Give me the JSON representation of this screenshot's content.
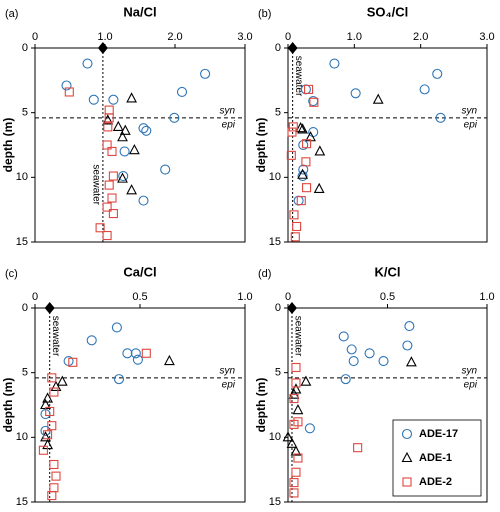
{
  "chart_data": [
    {
      "type": "scatter",
      "panel_label": "(a)",
      "title": "Na/Cl",
      "ylabel": "depth (m)",
      "xlim": [
        0,
        3
      ],
      "xticks": [
        0,
        {
          "value": 1,
          "label": "1.0"
        },
        {
          "value": 2,
          "label": "2.0"
        },
        {
          "value": 3,
          "label": "3.0"
        }
      ],
      "ylim": [
        0,
        15
      ],
      "yticks": [
        0,
        5,
        10,
        15
      ],
      "y_inverted": true,
      "seawater": {
        "label": "seawater",
        "value": 0.97
      },
      "boundary": {
        "value": 5.4,
        "labels": [
          "syn",
          "epi"
        ]
      },
      "series": [
        {
          "marker": "circle",
          "color": "#2e75b6",
          "x": [
            0.75,
            2.43,
            2.1,
            0.45,
            0.84,
            1.12,
            1.99,
            1.55,
            1.59,
            1.28,
            1.26,
            1.86,
            1.55
          ],
          "values": [
            1.2,
            2.0,
            3.4,
            2.9,
            4.0,
            4.0,
            5.4,
            6.2,
            6.4,
            8.0,
            9.9,
            9.4,
            11.8
          ]
        },
        {
          "marker": "triangle",
          "color": "#000000",
          "x": [
            1.38,
            1.04,
            1.19,
            1.29,
            1.25,
            1.42,
            1.25,
            1.38
          ],
          "values": [
            3.9,
            5.6,
            6.1,
            6.4,
            6.9,
            7.9,
            10.1,
            11.0
          ]
        },
        {
          "marker": "square",
          "color": "#e0463f",
          "x": [
            0.49,
            1.06,
            1.06,
            1.04,
            1.03,
            1.1,
            1.12,
            1.06,
            1.1,
            1.03,
            1.12,
            0.93,
            1.03
          ],
          "values": [
            3.4,
            4.8,
            5.4,
            6.1,
            7.5,
            8.0,
            9.9,
            10.6,
            11.6,
            12.3,
            12.8,
            13.9,
            14.5
          ]
        }
      ]
    },
    {
      "type": "scatter",
      "panel_label": "(b)",
      "title": "SO₄/Cl",
      "ylabel": "depth (m)",
      "xlim": [
        0,
        3
      ],
      "xticks": [
        0,
        {
          "value": 1,
          "label": "1.0"
        },
        {
          "value": 2,
          "label": "2.0"
        },
        {
          "value": 3,
          "label": "3.0"
        }
      ],
      "ylim": [
        0,
        15
      ],
      "yticks": [
        0,
        5,
        10,
        15
      ],
      "y_inverted": true,
      "seawater": {
        "label": "seawater",
        "value": 0.07
      },
      "boundary": {
        "value": 5.4,
        "labels": [
          "syn",
          "epi"
        ]
      },
      "series": [
        {
          "marker": "circle",
          "color": "#2e75b6",
          "x": [
            0.7,
            2.25,
            1.02,
            0.27,
            2.06,
            0.38,
            2.3,
            0.38,
            0.23,
            0.23,
            0.22,
            0.16
          ],
          "values": [
            1.2,
            2.0,
            3.5,
            3.2,
            3.2,
            4.1,
            5.4,
            6.5,
            7.5,
            9.4,
            9.9,
            11.8
          ]
        },
        {
          "marker": "triangle",
          "color": "#000000",
          "x": [
            1.36,
            0.19,
            0.22,
            0.34,
            0.48,
            0.22,
            0.47
          ],
          "values": [
            4.0,
            6.2,
            6.3,
            6.9,
            8.0,
            9.8,
            10.9
          ]
        },
        {
          "marker": "square",
          "color": "#e0463f",
          "x": [
            0.31,
            0.39,
            0.08,
            0.06,
            0.28,
            0.05,
            0.27,
            0.28,
            0.2,
            0.09,
            0.13,
            0.11
          ],
          "values": [
            3.2,
            4.2,
            6.1,
            6.5,
            7.4,
            8.3,
            8.8,
            10.8,
            11.8,
            12.9,
            13.8,
            14.6
          ]
        }
      ]
    },
    {
      "type": "scatter",
      "panel_label": "(c)",
      "title": "Ca/Cl",
      "ylabel": "depth (m)",
      "xlim": [
        0,
        1
      ],
      "xticks": [
        0,
        0.5,
        {
          "value": 1,
          "label": "1.0"
        }
      ],
      "ylim": [
        0,
        15
      ],
      "yticks": [
        0,
        5,
        10,
        15
      ],
      "y_inverted": true,
      "seawater": {
        "label": "seawater",
        "value": 0.07
      },
      "boundary": {
        "value": 5.4,
        "labels": [
          "syn",
          "epi"
        ]
      },
      "series": [
        {
          "marker": "circle",
          "color": "#2e75b6",
          "x": [
            0.39,
            0.27,
            0.44,
            0.16,
            0.49,
            0.48,
            0.4,
            0.05,
            0.05
          ],
          "values": [
            1.5,
            2.5,
            3.5,
            4.1,
            4.0,
            3.5,
            5.5,
            8.2,
            9.5
          ]
        },
        {
          "marker": "triangle",
          "color": "#000000",
          "x": [
            0.64,
            0.13,
            0.1,
            0.06,
            0.05,
            0.05,
            0.06
          ],
          "values": [
            4.1,
            5.7,
            6.1,
            7.0,
            7.5,
            10.0,
            10.6
          ]
        },
        {
          "marker": "square",
          "color": "#e0463f",
          "x": [
            0.18,
            0.53,
            0.08,
            0.09,
            0.07,
            0.08,
            0.06,
            0.04,
            0.09,
            0.1,
            0.09,
            0.08
          ],
          "values": [
            4.2,
            3.5,
            5.4,
            6.5,
            8.0,
            9.1,
            9.8,
            11.0,
            12.1,
            13.0,
            13.9,
            14.5
          ]
        }
      ]
    },
    {
      "type": "scatter",
      "panel_label": "(d)",
      "title": "K/Cl",
      "ylabel": "depth (m)",
      "xlim": [
        0,
        1
      ],
      "xticks": [
        0,
        0.5,
        {
          "value": 1,
          "label": "1.0"
        }
      ],
      "ylim": [
        0,
        15
      ],
      "yticks": [
        0,
        5,
        10,
        15
      ],
      "y_inverted": true,
      "seawater": {
        "label": "seawater",
        "value": 0.02
      },
      "boundary": {
        "value": 5.4,
        "labels": [
          "syn",
          "epi"
        ]
      },
      "legend": "lower right",
      "series": [
        {
          "name": "ADE-17",
          "marker": "circle",
          "color": "#2e75b6",
          "x": [
            0.61,
            0.28,
            0.6,
            0.32,
            0.41,
            0.33,
            0.48,
            0.29,
            0.11
          ],
          "values": [
            1.4,
            2.2,
            2.9,
            3.2,
            3.5,
            4.1,
            4.1,
            5.5,
            9.3
          ]
        },
        {
          "name": "ADE-1",
          "marker": "triangle",
          "color": "#000000",
          "x": [
            0.62,
            0.09,
            0.04,
            0.03,
            0.05,
            0.0,
            0.02,
            0.04
          ],
          "values": [
            4.2,
            5.7,
            6.3,
            6.7,
            7.9,
            10.0,
            10.5,
            11.1
          ]
        },
        {
          "name": "ADE-2",
          "marker": "square",
          "color": "#e0463f",
          "x": [
            0.04,
            0.04,
            0.03,
            0.05,
            0.03,
            0.35,
            0.05,
            0.04,
            0.03,
            0.03
          ],
          "values": [
            4.6,
            5.8,
            7.0,
            8.8,
            9.0,
            10.8,
            11.6,
            12.7,
            13.5,
            14.3
          ]
        }
      ]
    }
  ]
}
